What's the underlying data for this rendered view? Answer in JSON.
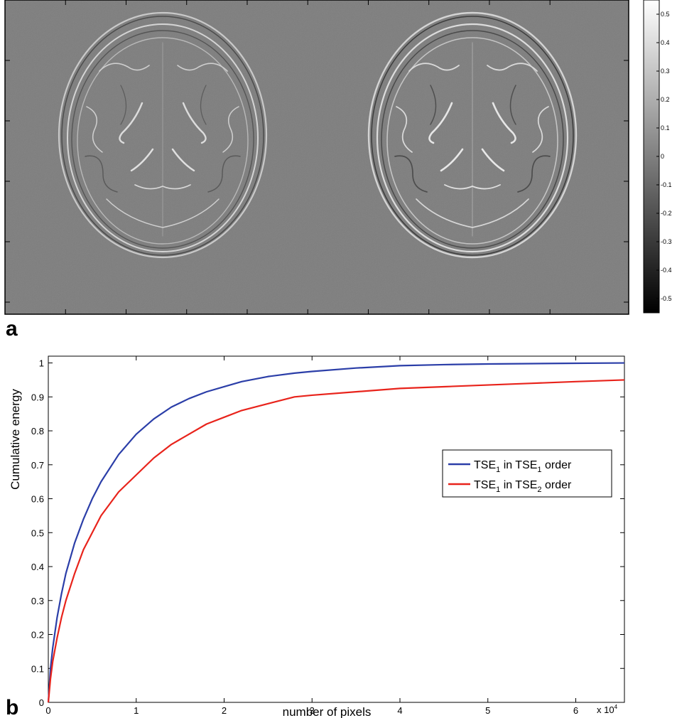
{
  "panels": {
    "a_label": "a",
    "b_label": "b"
  },
  "image_panel": {
    "content": "two axial brain MRI difference images",
    "background_color": "#7e7e7e",
    "colorbar": {
      "colormap": "gray",
      "range": [
        -0.55,
        0.55
      ],
      "tick_labels": [
        "0.5",
        "0.4",
        "0.3",
        "0.2",
        "0.1",
        "0",
        "-0.1",
        "-0.2",
        "-0.3",
        "-0.4",
        "-0.5"
      ],
      "tick_values": [
        0.5,
        0.4,
        0.3,
        0.2,
        0.1,
        0,
        -0.1,
        -0.2,
        -0.3,
        -0.4,
        -0.5
      ]
    }
  },
  "chart_data": {
    "type": "line",
    "title": "",
    "xlabel": "number of pixels",
    "ylabel": "Cumulative energy",
    "x_multiplier_label": "x 10",
    "x_multiplier_exp": "4",
    "xlim": [
      0,
      65536
    ],
    "ylim": [
      0,
      1.02
    ],
    "x_ticks": [
      0,
      10000,
      20000,
      30000,
      40000,
      50000,
      60000
    ],
    "x_tick_labels": [
      "0",
      "1",
      "2",
      "3",
      "4",
      "5",
      "6"
    ],
    "y_ticks": [
      0,
      0.1,
      0.2,
      0.3,
      0.4,
      0.5,
      0.6,
      0.7,
      0.8,
      0.9,
      1
    ],
    "y_tick_labels": [
      "0",
      "0.1",
      "0.2",
      "0.3",
      "0.4",
      "0.5",
      "0.6",
      "0.7",
      "0.8",
      "0.9",
      "1"
    ],
    "grid": false,
    "legend_position": "right",
    "series": [
      {
        "legend": {
          "base": "TSE",
          "sub1": "1",
          "mid": " in TSE",
          "sub2": "1",
          "tail": " order"
        },
        "color": "#2b3ea8",
        "x": [
          0,
          250,
          500,
          1000,
          1500,
          2000,
          3000,
          4000,
          5000,
          6000,
          8000,
          10000,
          12000,
          14000,
          16000,
          18000,
          20000,
          22000,
          25000,
          28000,
          30000,
          35000,
          40000,
          45000,
          50000,
          55000,
          60000,
          65536
        ],
        "y": [
          0.0,
          0.1,
          0.16,
          0.25,
          0.32,
          0.38,
          0.47,
          0.54,
          0.6,
          0.65,
          0.73,
          0.79,
          0.835,
          0.87,
          0.895,
          0.915,
          0.93,
          0.945,
          0.96,
          0.97,
          0.975,
          0.985,
          0.992,
          0.995,
          0.997,
          0.998,
          0.999,
          1.0
        ]
      },
      {
        "legend": {
          "base": "TSE",
          "sub1": "1",
          "mid": " in TSE",
          "sub2": "2",
          "tail": " order"
        },
        "color": "#e8231b",
        "x": [
          0,
          250,
          500,
          1000,
          1500,
          2000,
          3000,
          4000,
          5000,
          6000,
          8000,
          10000,
          12000,
          14000,
          16000,
          18000,
          20000,
          22000,
          25000,
          28000,
          30000,
          35000,
          40000,
          45000,
          50000,
          55000,
          60000,
          65536
        ],
        "y": [
          0.0,
          0.07,
          0.12,
          0.19,
          0.25,
          0.3,
          0.38,
          0.45,
          0.5,
          0.55,
          0.62,
          0.67,
          0.72,
          0.76,
          0.79,
          0.82,
          0.84,
          0.86,
          0.88,
          0.9,
          0.905,
          0.915,
          0.925,
          0.93,
          0.935,
          0.94,
          0.945,
          0.95
        ]
      }
    ]
  }
}
